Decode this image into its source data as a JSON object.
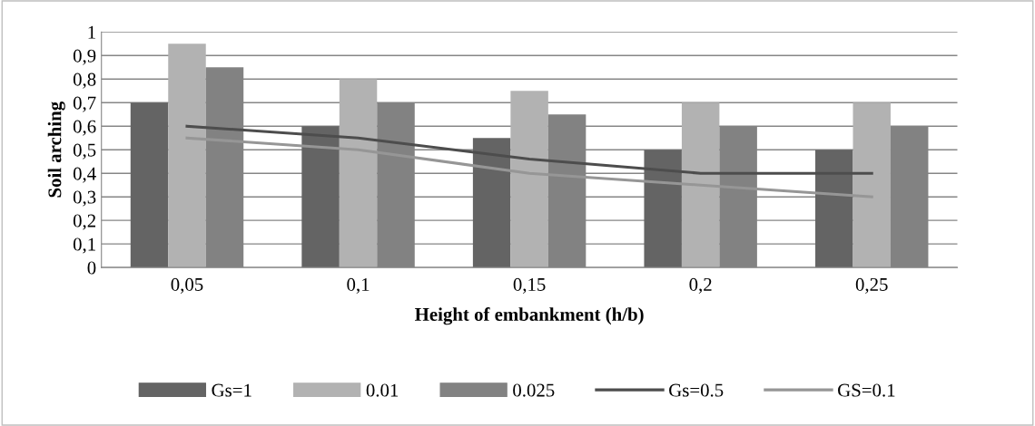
{
  "chart_data": {
    "type": "bar",
    "xlabel": "Height of embankment (h/b)",
    "ylabel": "Soil arching",
    "categories": [
      "0,05",
      "0,1",
      "0,15",
      "0,2",
      "0,25"
    ],
    "series": [
      {
        "name": "Gs=1",
        "color": "#646464",
        "values": [
          0.7,
          0.6,
          0.55,
          0.5,
          0.5
        ]
      },
      {
        "name": "0.01",
        "color": "#b2b2b2",
        "values": [
          0.95,
          0.8,
          0.75,
          0.7,
          0.7
        ]
      },
      {
        "name": "0.025",
        "color": "#828282",
        "values": [
          0.85,
          0.7,
          0.65,
          0.6,
          0.6
        ]
      },
      {
        "name": "Gs=0.5",
        "type": "line",
        "color": "#4d4d4d",
        "values": [
          0.6,
          0.55,
          0.46,
          0.4,
          0.4
        ]
      },
      {
        "name": "GS=0.1",
        "type": "line",
        "color": "#969696",
        "values": [
          0.55,
          0.5,
          0.4,
          0.35,
          0.3
        ]
      }
    ],
    "ylim": [
      0,
      1
    ],
    "yticks": [
      0,
      {
        "value": 0.1,
        "label": "0,1"
      },
      {
        "value": 0.2,
        "label": "0,2"
      },
      {
        "value": 0.3,
        "label": "0,3"
      },
      {
        "value": 0.4,
        "label": "0,4"
      },
      {
        "value": 0.5,
        "label": "0,5"
      },
      {
        "value": 0.6,
        "label": "0,6"
      },
      {
        "value": 0.7,
        "label": "0,7"
      },
      {
        "value": 0.8,
        "label": "0,8"
      },
      {
        "value": 0.9,
        "label": "0,9"
      },
      1
    ],
    "grid": "y",
    "legend": "bottom"
  }
}
